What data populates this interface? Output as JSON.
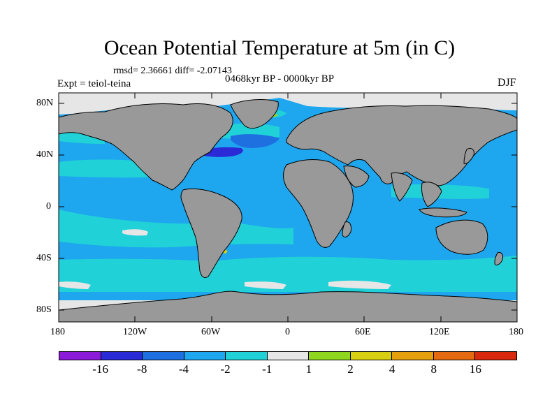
{
  "figure": {
    "title": "Ocean Potential Temperature at 5m (in C)",
    "stats": "rmsd= 2.36661 diff= -2.07143",
    "experiment": "Expt = teiol-teina",
    "period": "0468kyr BP - 0000kyr BP",
    "season": "DJF"
  },
  "axes": {
    "lat_ticks": [
      "80N",
      "40N",
      "0",
      "40S",
      "80S"
    ],
    "lon_ticks": [
      "180",
      "120W",
      "60W",
      "0",
      "60E",
      "120E",
      "180"
    ]
  },
  "colorbar": {
    "colors": [
      "#8c1bd9",
      "#2a2ad6",
      "#1e6fe0",
      "#1ea6ee",
      "#20d2d8",
      "#e6e6e6",
      "#8fd61e",
      "#d9cf12",
      "#e6a00e",
      "#e36a10",
      "#d9290c"
    ],
    "labels": [
      "-16",
      "-8",
      "-4",
      "-2",
      "-1",
      "1",
      "2",
      "4",
      "8",
      "16"
    ]
  },
  "colors": {
    "ocean": "#1ea6ee",
    "ocean_light": "#20d2d8",
    "land": "#999999",
    "ice": "#e6e6e6",
    "strong_cold": "#2a2ad6",
    "cold": "#1e6fe0"
  }
}
